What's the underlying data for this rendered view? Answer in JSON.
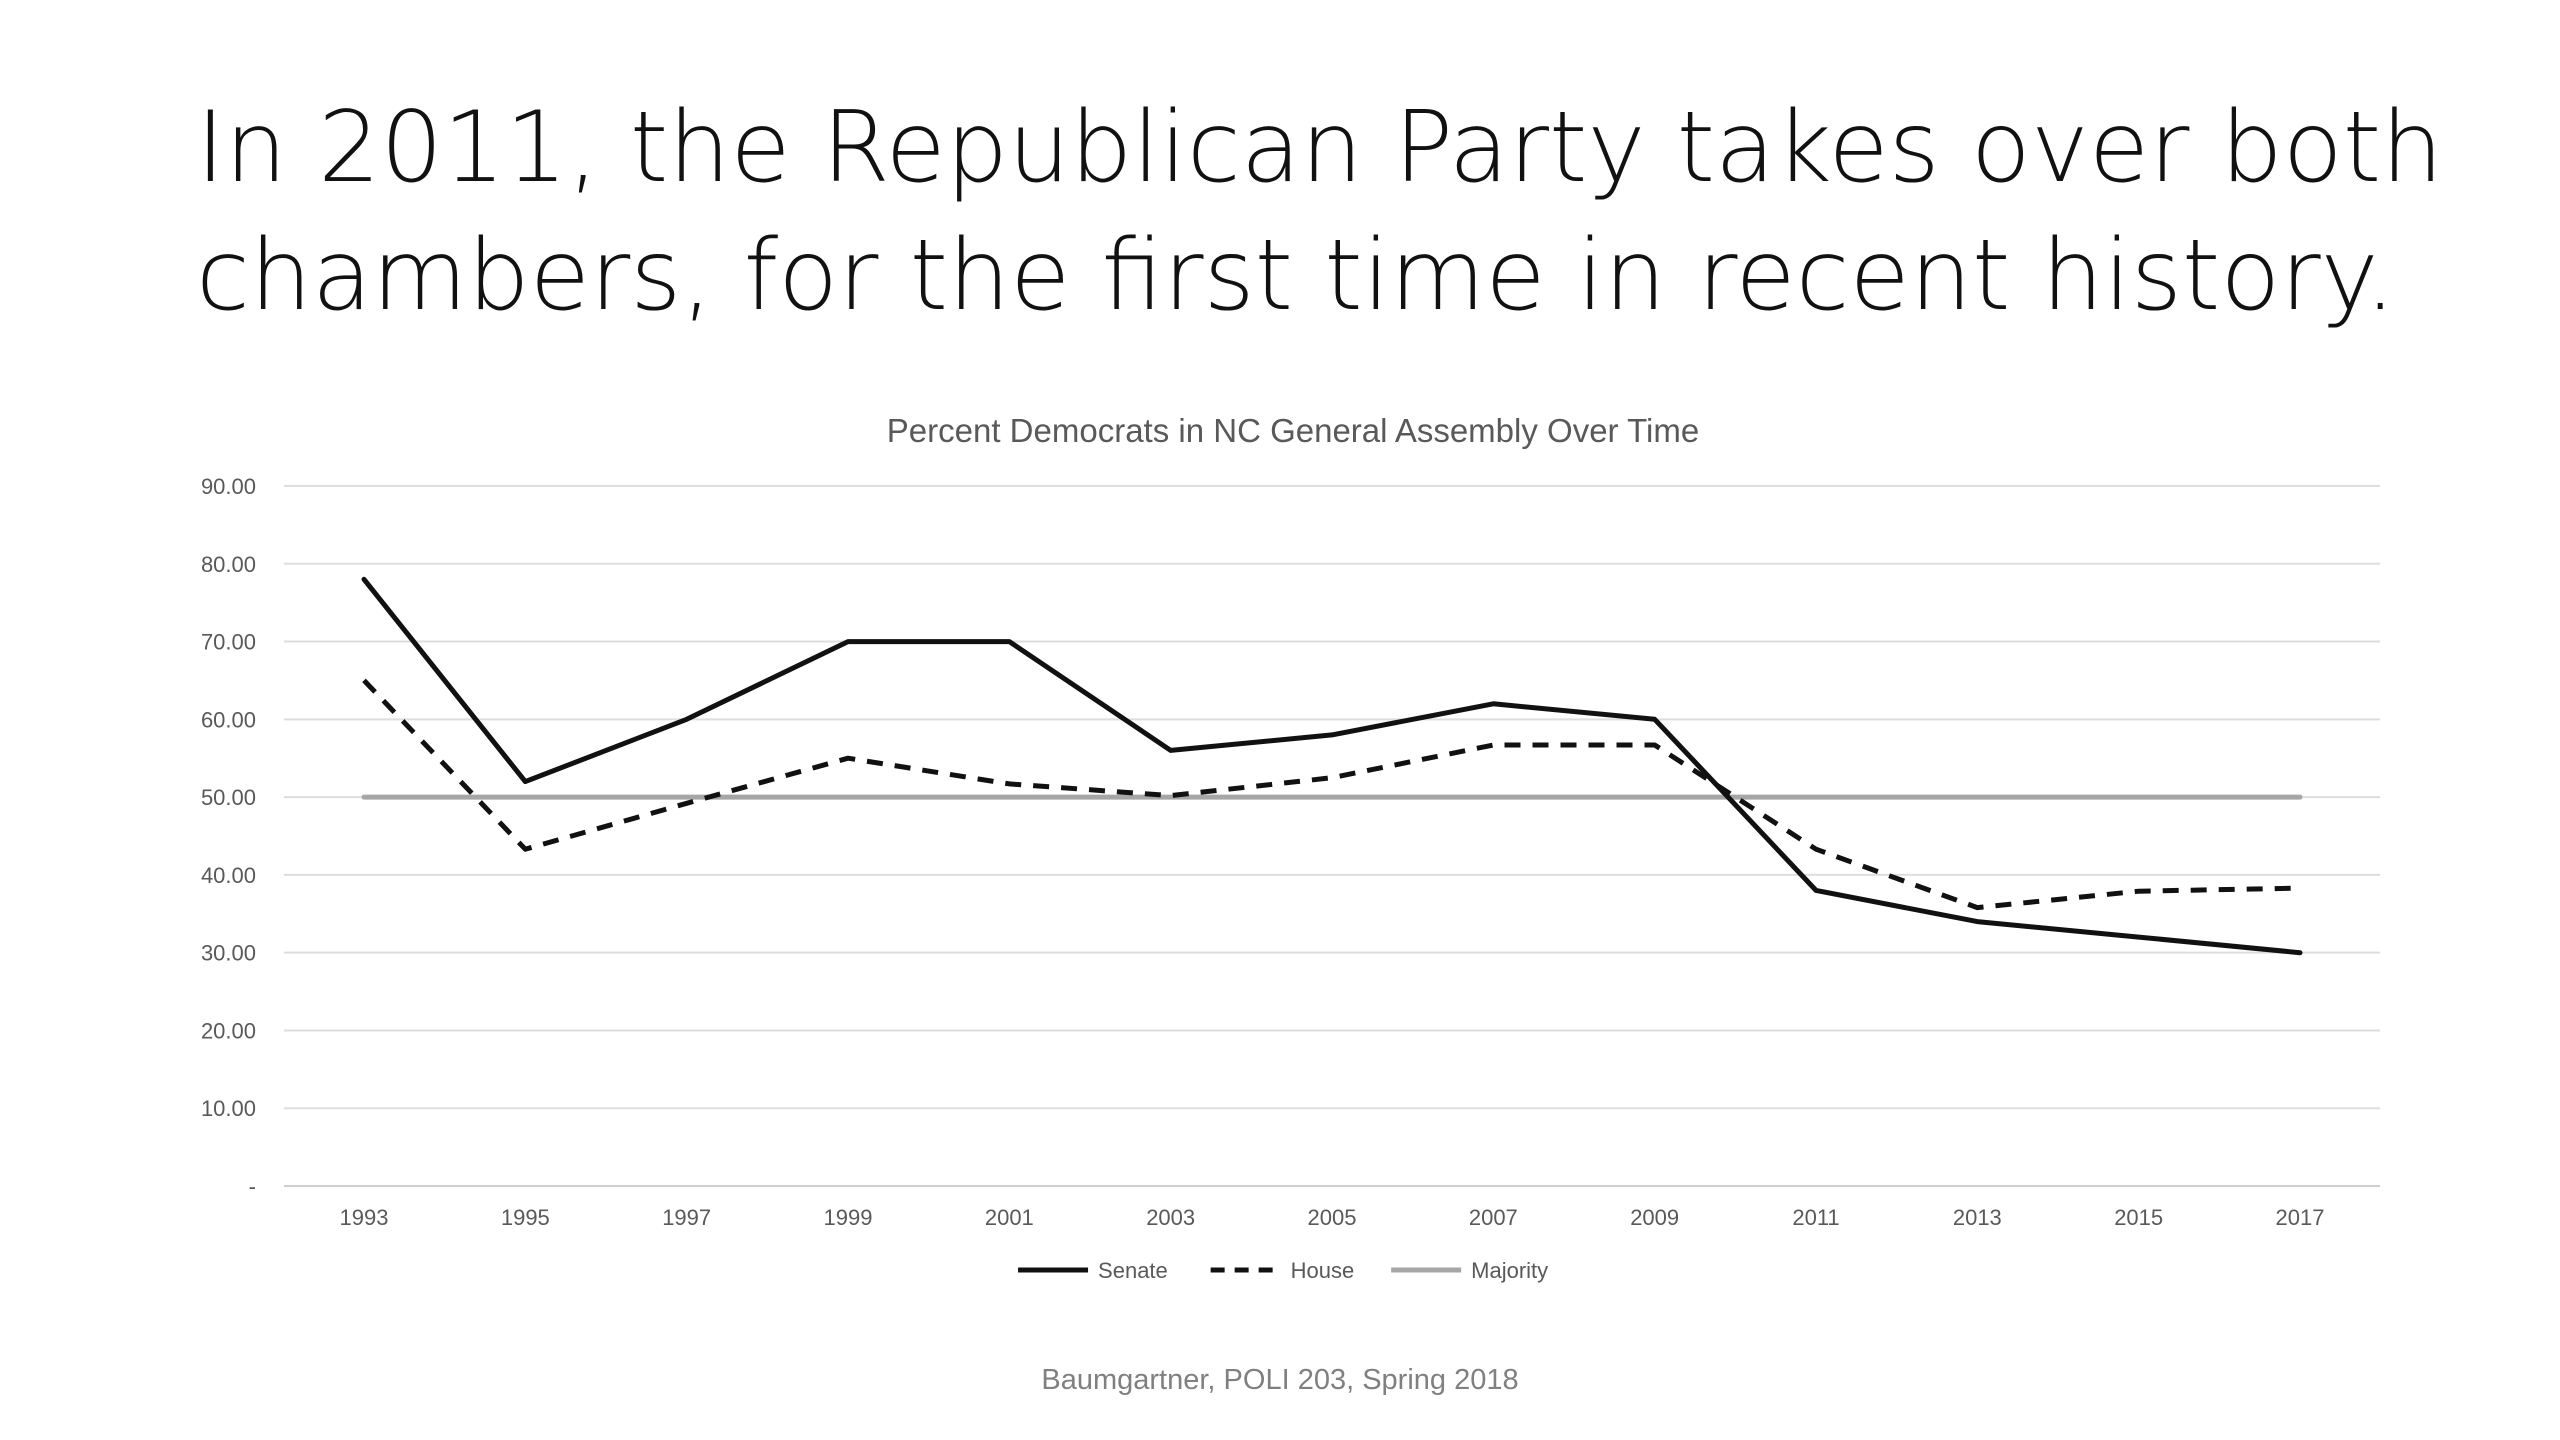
{
  "slide": {
    "title_line1": "In 2011, the Republican Party takes over both",
    "title_line2": "chambers, for the first time in recent history.",
    "footer": "Baumgartner, POLI 203, Spring 2018"
  },
  "chart_data": {
    "type": "line",
    "title": "Percent Democrats in NC General Assembly Over Time",
    "xlabel": "",
    "ylabel": "",
    "categories": [
      "1993",
      "1995",
      "1997",
      "1999",
      "2001",
      "2003",
      "2005",
      "2007",
      "2009",
      "2011",
      "2013",
      "2015",
      "2017"
    ],
    "y_ticks": [
      0,
      10,
      20,
      30,
      40,
      50,
      60,
      70,
      80,
      90
    ],
    "y_tick_labels": [
      "-",
      "10.00",
      "20.00",
      "30.00",
      "40.00",
      "50.00",
      "60.00",
      "70.00",
      "80.00",
      "90.00"
    ],
    "ylim": [
      0,
      90
    ],
    "grid": true,
    "legend_position": "bottom",
    "series": [
      {
        "name": "Senate",
        "style": "solid",
        "color": "#111111",
        "values": [
          78,
          52,
          60,
          70,
          70,
          56,
          58,
          62,
          60,
          38,
          34,
          32,
          30
        ]
      },
      {
        "name": "House",
        "style": "dashed",
        "color": "#111111",
        "values": [
          65,
          43.3,
          49.2,
          55,
          51.7,
          50.2,
          52.5,
          56.7,
          56.7,
          43.3,
          35.8,
          37.9,
          38.3
        ]
      },
      {
        "name": "Majority",
        "style": "solid",
        "color": "#a6a6a6",
        "values": [
          50,
          50,
          50,
          50,
          50,
          50,
          50,
          50,
          50,
          50,
          50,
          50,
          50
        ]
      }
    ]
  }
}
